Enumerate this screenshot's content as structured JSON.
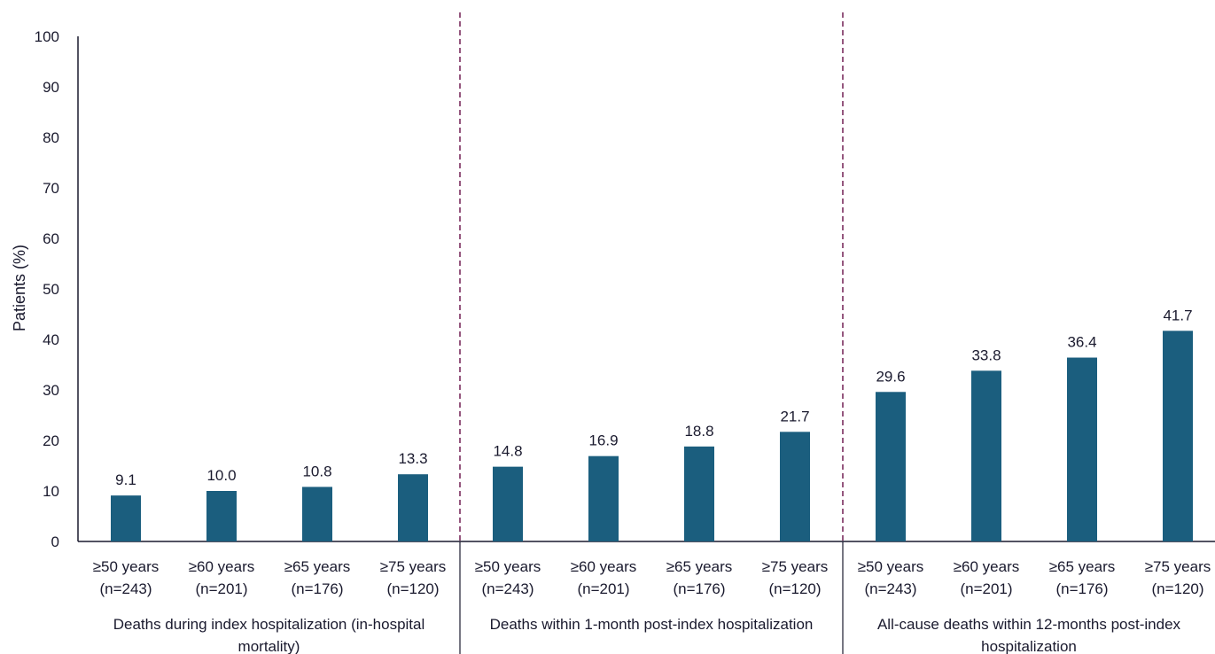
{
  "chart_data": {
    "type": "bar",
    "ylabel": "Patients (%)",
    "ylim": [
      0,
      100
    ],
    "yticks": [
      0,
      10,
      20,
      30,
      40,
      50,
      60,
      70,
      80,
      90,
      100
    ],
    "grid": false,
    "bar_color": "#1b5e7e",
    "separator_color": "#7b2d5e",
    "groups": [
      {
        "label": "Deaths during index hospitalization (in-hospital mortality)",
        "label_lines": [
          "Deaths during index hospitalization (in-hospital",
          "mortality)"
        ],
        "bars": [
          {
            "category": "≥50 years",
            "n": "(n=243)",
            "value": 9.1,
            "label": "9.1"
          },
          {
            "category": "≥60 years",
            "n": "(n=201)",
            "value": 10.0,
            "label": "10.0"
          },
          {
            "category": "≥65 years",
            "n": "(n=176)",
            "value": 10.8,
            "label": "10.8"
          },
          {
            "category": "≥75 years",
            "n": "(n=120)",
            "value": 13.3,
            "label": "13.3"
          }
        ]
      },
      {
        "label": "Deaths within 1-month post-index hospitalization",
        "label_lines": [
          "Deaths within 1-month post-index hospitalization"
        ],
        "bars": [
          {
            "category": "≥50 years",
            "n": "(n=243)",
            "value": 14.8,
            "label": "14.8"
          },
          {
            "category": "≥60 years",
            "n": "(n=201)",
            "value": 16.9,
            "label": "16.9"
          },
          {
            "category": "≥65 years",
            "n": "(n=176)",
            "value": 18.8,
            "label": "18.8"
          },
          {
            "category": "≥75 years",
            "n": "(n=120)",
            "value": 21.7,
            "label": "21.7"
          }
        ]
      },
      {
        "label": "All-cause deaths within 12-months post-index hospitalization",
        "label_lines": [
          "All-cause deaths within 12-months post-index",
          "hospitalization"
        ],
        "bars": [
          {
            "category": "≥50 years",
            "n": "(n=243)",
            "value": 29.6,
            "label": "29.6"
          },
          {
            "category": "≥60 years",
            "n": "(n=201)",
            "value": 33.8,
            "label": "33.8"
          },
          {
            "category": "≥65 years",
            "n": "(n=176)",
            "value": 36.4,
            "label": "36.4"
          },
          {
            "category": "≥75 years",
            "n": "(n=120)",
            "value": 41.7,
            "label": "41.7"
          }
        ]
      }
    ]
  }
}
